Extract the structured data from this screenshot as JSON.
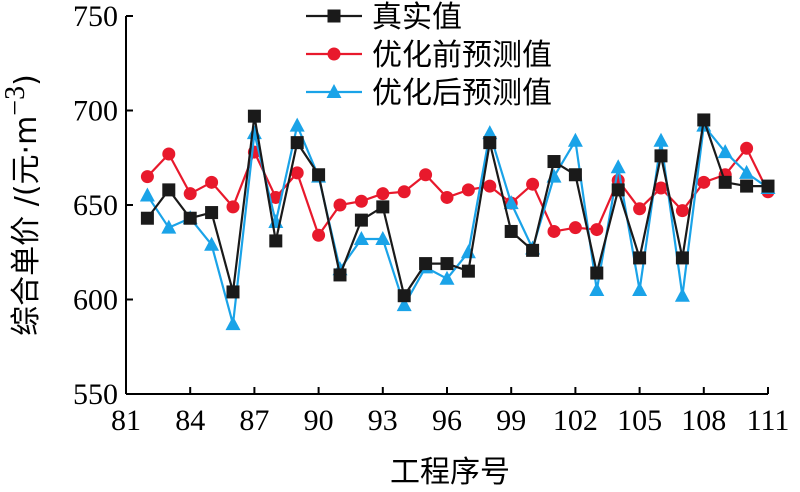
{
  "chart_data": {
    "type": "line",
    "xlabel": "工程序号",
    "ylabel_text": "综合单价 /(元·m",
    "ylabel_sup": "−3",
    "ylabel_close": ")",
    "ylim": [
      550,
      750
    ],
    "xlim": [
      81,
      111
    ],
    "yticks": [
      550,
      600,
      650,
      700,
      750
    ],
    "xticks": [
      81,
      84,
      87,
      90,
      93,
      96,
      99,
      102,
      105,
      108,
      111
    ],
    "legend_position": "top-center",
    "x": [
      82,
      83,
      84,
      85,
      86,
      87,
      88,
      89,
      90,
      91,
      92,
      93,
      94,
      95,
      96,
      97,
      98,
      99,
      100,
      101,
      102,
      103,
      104,
      105,
      106,
      107,
      108,
      109,
      110,
      111
    ],
    "series": [
      {
        "name": "真实值",
        "color": "#1a1a1a",
        "marker": "square",
        "values": [
          643,
          658,
          643,
          646,
          604,
          697,
          631,
          683,
          666,
          613,
          642,
          649,
          602,
          619,
          619,
          615,
          683,
          636,
          626,
          673,
          666,
          614,
          658,
          622,
          676,
          622,
          695,
          662,
          660,
          660
        ]
      },
      {
        "name": "优化前预测值",
        "color": "#e8192c",
        "marker": "circle",
        "values": [
          665,
          677,
          656,
          662,
          649,
          678,
          654,
          667,
          634,
          650,
          652,
          656,
          657,
          666,
          654,
          658,
          660,
          651,
          661,
          636,
          638,
          637,
          663,
          648,
          659,
          647,
          662,
          666,
          680,
          657
        ]
      },
      {
        "name": "优化后预测值",
        "color": "#1aa3e8",
        "marker": "triangle",
        "values": [
          655,
          638,
          643,
          629,
          587,
          688,
          641,
          692,
          665,
          616,
          632,
          632,
          597,
          617,
          611,
          625,
          688,
          651,
          627,
          665,
          684,
          605,
          670,
          605,
          684,
          602,
          692,
          678,
          667,
          659
        ]
      }
    ]
  }
}
